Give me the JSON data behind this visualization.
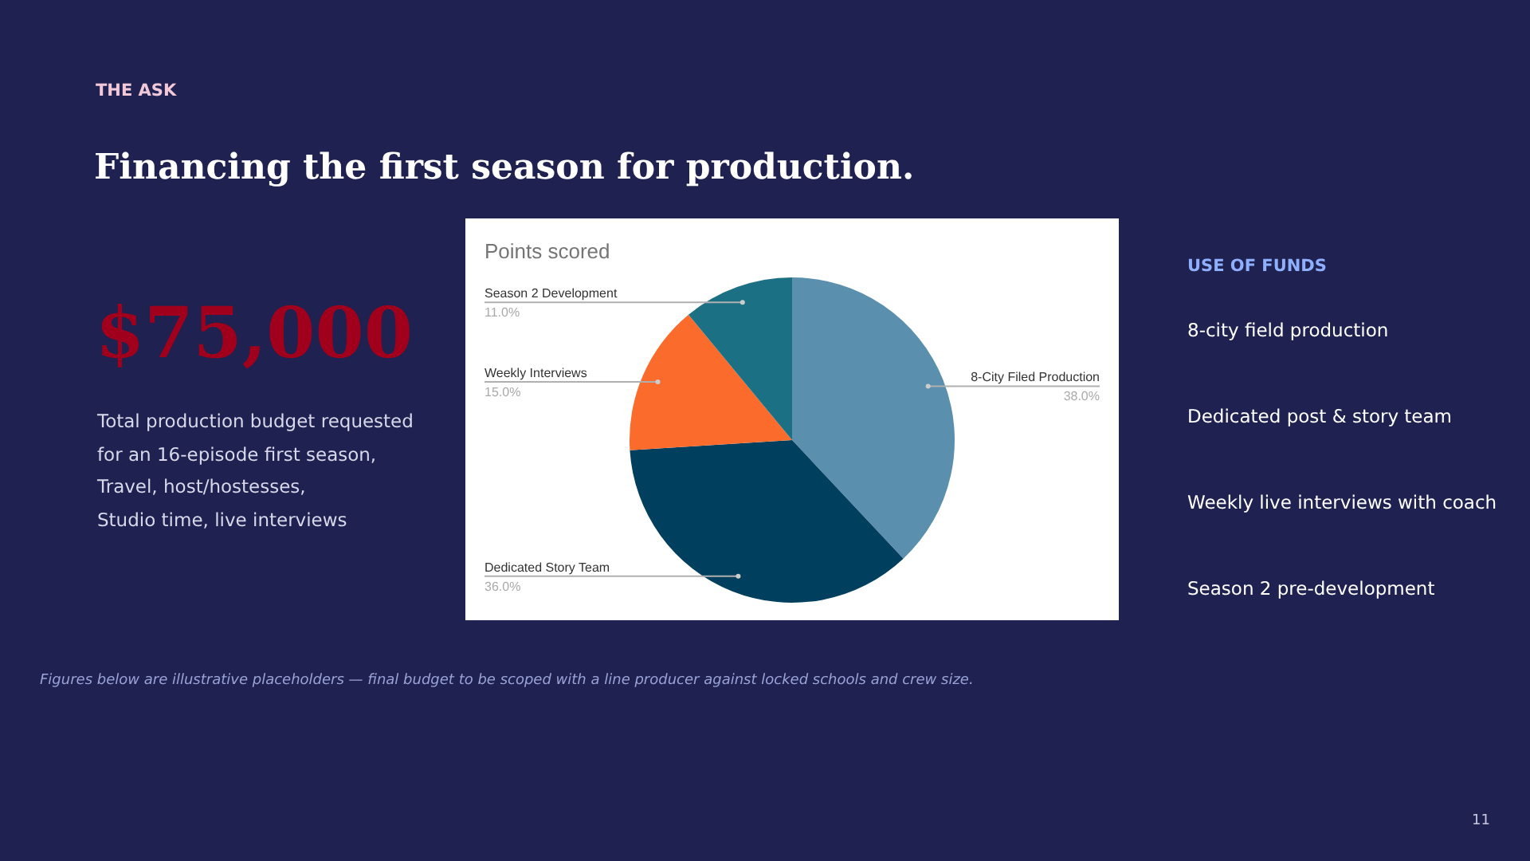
{
  "chart_data": [
    {
      "type": "other",
      "subtitle": "THE ASK",
      "title": "Financing the first season for production.",
      "annotations": [
        "$75,000",
        "Total production budget requested",
        "for an 16-episode first season,",
        "Travel, host/hostesses,",
        "Studio time, live interviews",
        "USE OF FUNDS",
        "8-city field production",
        "Dedicated post & story team",
        "Weekly live interviews with coach",
        "Season 2 pre-development",
        "Figures below are illustrative placeholders — final budget to be scoped with a line producer against locked schools and crew size.",
        "11"
      ]
    },
    {
      "type": "pie",
      "title": "Points scored",
      "categories": [
        "8-City Filed Production",
        "Dedicated Story Team",
        "Weekly Interviews",
        "Season 2 Development"
      ],
      "values": [
        38,
        36,
        15,
        11
      ],
      "colors": [
        "#5b8fae",
        "#00405e",
        "#fb6b2c",
        "#1c7083"
      ],
      "value_labels": [
        "38.0%",
        "36.0%",
        "15.0%",
        "11.0%"
      ]
    }
  ]
}
